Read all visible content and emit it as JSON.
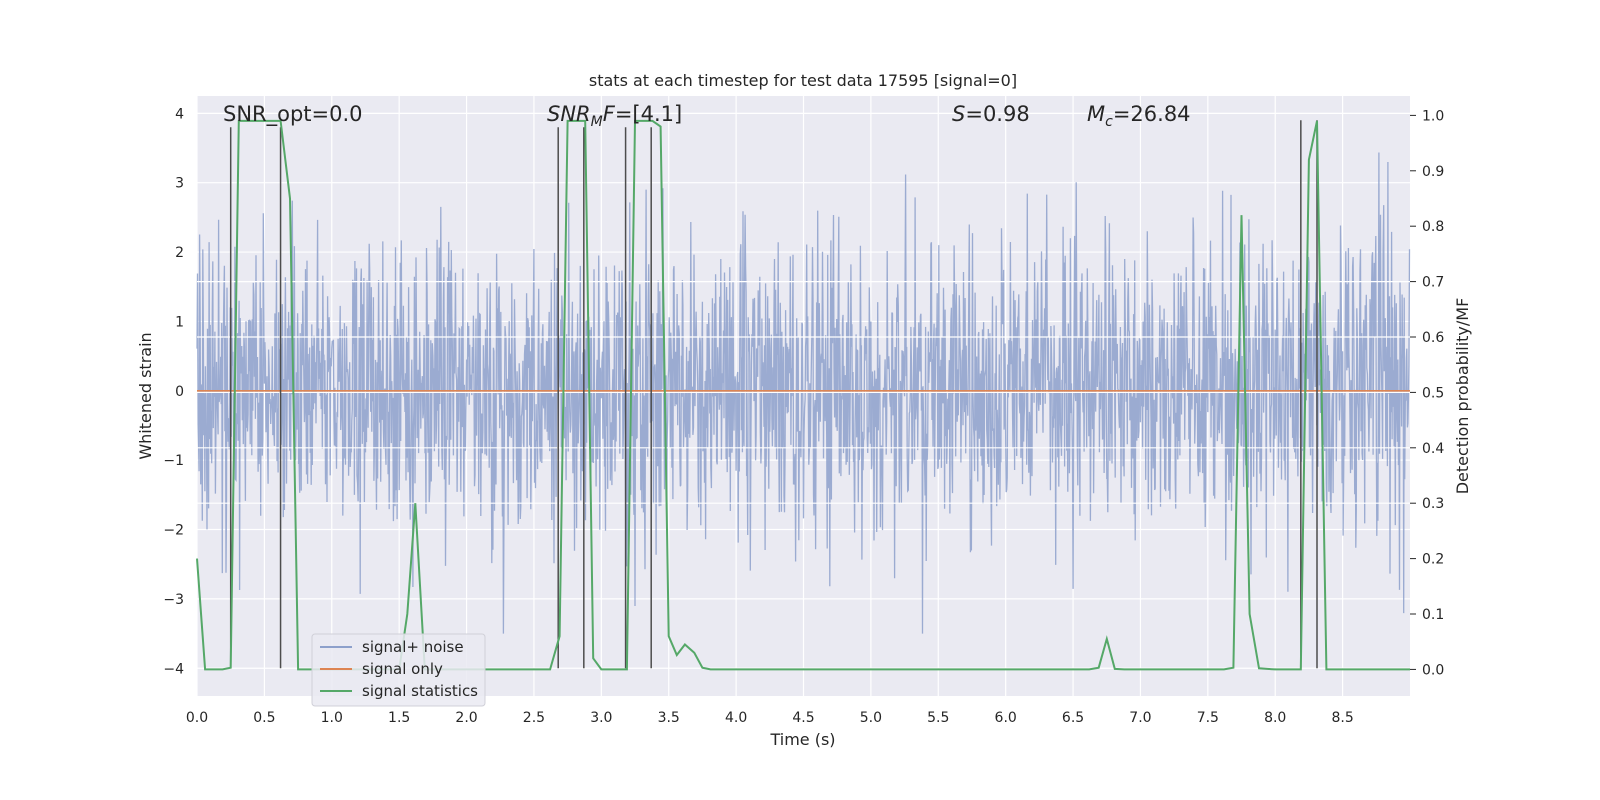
{
  "chart_data": {
    "type": "line",
    "title": "stats at each timestep for test data 17595 [signal=0]",
    "xlabel": "Time (s)",
    "ylabel": "Whitened strain",
    "y2label": "Detection probability/MF",
    "xlim": [
      0,
      9.0
    ],
    "ylim": [
      -4.4,
      4.25
    ],
    "y2lim": [
      -0.048,
      1.035
    ],
    "x_ticks": [
      0.0,
      0.5,
      1.0,
      1.5,
      2.0,
      2.5,
      3.0,
      3.5,
      4.0,
      4.5,
      5.0,
      5.5,
      6.0,
      6.5,
      7.0,
      7.5,
      8.0,
      8.5
    ],
    "y_ticks": [
      4,
      3,
      2,
      1,
      0,
      -1,
      -2,
      -3,
      -4
    ],
    "y2_ticks": [
      1.0,
      0.9,
      0.8,
      0.7,
      0.6,
      0.5,
      0.4,
      0.3,
      0.2,
      0.1,
      0.0
    ],
    "y2_extra_gridlines": [
      0.7,
      0.6,
      0.5,
      0.4,
      0.3
    ],
    "grid": true,
    "legend_position": "lower-left",
    "annotations": {
      "snr_opt": "SNR_opt=0.0",
      "snr_mf": "SNR_MF=[4.1]",
      "stat_s": "S=0.98",
      "mc": "M_c=26.84"
    },
    "noise_series": {
      "name": "signal+ noise",
      "color": "#8da0cb",
      "sample_rate": 256,
      "amplitude_sigma": 1.05,
      "note_values": "approximate white-noise envelope, range about -3.5 to 3.9"
    },
    "signal_series": {
      "name": "signal only",
      "color": "#dd8452",
      "x": [
        0.0,
        9.0
      ],
      "y": [
        0.0,
        0.0
      ]
    },
    "stat_series": {
      "name": "signal statistics",
      "color": "#55a868",
      "x": [
        0.0,
        0.06,
        0.12,
        0.19,
        0.25,
        0.31,
        0.38,
        0.44,
        0.5,
        0.56,
        0.62,
        0.69,
        0.75,
        0.81,
        0.88,
        0.94,
        1.0,
        1.06,
        1.12,
        1.19,
        1.25,
        1.31,
        1.38,
        1.44,
        1.5,
        1.56,
        1.62,
        1.69,
        1.75,
        1.81,
        1.88,
        1.94,
        2.0,
        2.5,
        2.62,
        2.69,
        2.75,
        2.81,
        2.88,
        2.94,
        3.0,
        3.06,
        3.12,
        3.19,
        3.25,
        3.31,
        3.38,
        3.44,
        3.5,
        3.56,
        3.62,
        3.69,
        3.75,
        3.81,
        4.0,
        6.62,
        6.69,
        6.75,
        6.81,
        6.88,
        6.94,
        7.0,
        7.62,
        7.69,
        7.75,
        7.81,
        7.88,
        7.94,
        8.0,
        8.12,
        8.19,
        8.25,
        8.31,
        8.38,
        8.44,
        8.5,
        9.0
      ],
      "y": [
        0.2,
        0.0,
        0.0,
        0.0,
        0.003,
        0.99,
        0.99,
        0.99,
        0.99,
        0.99,
        0.99,
        0.85,
        0.0,
        0.0,
        0.0,
        0.0,
        0.0,
        0.0,
        0.0,
        0.0,
        0.0,
        0.0,
        0.0,
        0.0,
        0.0,
        0.1,
        0.3,
        0.0,
        0.0,
        0.0,
        0.0,
        0.0,
        0.0,
        0.0,
        0.0,
        0.06,
        0.99,
        0.99,
        0.99,
        0.02,
        0.0,
        0.0,
        0.0,
        0.0,
        0.99,
        0.99,
        0.99,
        0.98,
        0.06,
        0.026,
        0.045,
        0.03,
        0.003,
        0.0,
        0.0,
        0.0,
        0.003,
        0.055,
        0.001,
        0.0,
        0.0,
        0.0,
        0.0,
        0.003,
        0.82,
        0.1,
        0.002,
        0.001,
        0.0,
        0.0,
        0.0,
        0.92,
        0.99,
        0.0,
        0.0,
        0.0,
        0.0
      ]
    },
    "marker_lines": {
      "color": "#4d4d4d",
      "x": [
        0.25,
        0.62,
        2.68,
        2.87,
        3.18,
        3.37,
        8.19,
        8.31
      ],
      "y_top": [
        3.8,
        3.8,
        3.8,
        3.8,
        3.8,
        3.8,
        3.9,
        3.9
      ]
    },
    "legend": [
      "signal+ noise",
      "signal only",
      "signal statistics"
    ]
  }
}
